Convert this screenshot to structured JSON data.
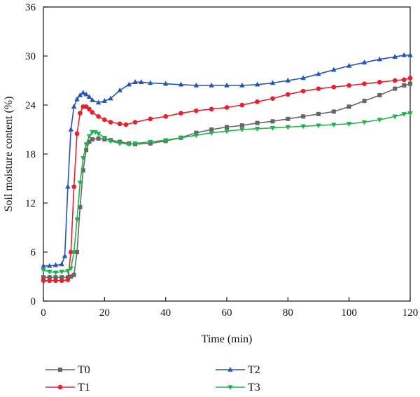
{
  "chart_data": {
    "type": "line",
    "title": "",
    "xlabel": "Time (min)",
    "ylabel": "Soil moisture content (%)",
    "xlim": [
      0,
      120
    ],
    "ylim": [
      0,
      36
    ],
    "xticks": [
      0,
      20,
      40,
      60,
      80,
      100,
      120
    ],
    "yticks": [
      0,
      6,
      12,
      18,
      24,
      30,
      36
    ],
    "grid": false,
    "legend_position": "bottom",
    "series": [
      {
        "name": "T0",
        "color": "#666666",
        "marker": "square",
        "x": [
          0,
          2,
          4,
          6,
          8,
          9,
          10,
          11,
          12,
          13,
          14,
          15,
          16,
          18,
          20,
          22,
          25,
          28,
          30,
          35,
          40,
          45,
          50,
          55,
          60,
          65,
          70,
          75,
          80,
          85,
          90,
          95,
          100,
          105,
          110,
          115,
          118,
          120
        ],
        "y": [
          2.9,
          2.9,
          2.9,
          2.9,
          2.9,
          3.0,
          3.2,
          6.0,
          11.5,
          16.0,
          18.5,
          19.5,
          19.8,
          19.9,
          19.8,
          19.7,
          19.5,
          19.3,
          19.2,
          19.3,
          19.6,
          20.0,
          20.6,
          21.0,
          21.3,
          21.5,
          21.8,
          22.0,
          22.3,
          22.6,
          22.9,
          23.2,
          23.8,
          24.5,
          25.2,
          26.0,
          26.4,
          26.6
        ]
      },
      {
        "name": "T1",
        "color": "#e8212e",
        "marker": "circle",
        "x": [
          0,
          2,
          4,
          6,
          8,
          9,
          10,
          11,
          12,
          13,
          14,
          15,
          16,
          18,
          20,
          22,
          25,
          27,
          30,
          35,
          40,
          45,
          50,
          55,
          60,
          65,
          70,
          75,
          80,
          85,
          90,
          95,
          100,
          105,
          110,
          115,
          118,
          120
        ],
        "y": [
          2.5,
          2.5,
          2.5,
          2.5,
          2.6,
          6.0,
          14.0,
          20.5,
          23.0,
          23.8,
          23.8,
          23.5,
          23.1,
          22.6,
          22.2,
          21.9,
          21.7,
          21.6,
          21.9,
          22.3,
          22.6,
          23.0,
          23.3,
          23.5,
          23.7,
          24.0,
          24.4,
          24.8,
          25.3,
          25.7,
          26.0,
          26.2,
          26.4,
          26.6,
          26.8,
          27.0,
          27.1,
          27.3
        ]
      },
      {
        "name": "T2",
        "color": "#2554b8",
        "marker": "triangle-up",
        "x": [
          0,
          2,
          4,
          6,
          7,
          8,
          9,
          10,
          11,
          12,
          13,
          14,
          15,
          16,
          18,
          20,
          22,
          25,
          28,
          30,
          32,
          35,
          40,
          45,
          50,
          55,
          60,
          65,
          70,
          75,
          80,
          85,
          90,
          95,
          100,
          105,
          110,
          115,
          118,
          120
        ],
        "y": [
          4.3,
          4.3,
          4.4,
          4.5,
          5.5,
          14.0,
          21.0,
          23.8,
          24.7,
          25.2,
          25.5,
          25.3,
          25.0,
          24.6,
          24.3,
          24.5,
          24.8,
          25.8,
          26.5,
          26.8,
          26.8,
          26.7,
          26.6,
          26.5,
          26.4,
          26.4,
          26.4,
          26.4,
          26.5,
          26.7,
          27.0,
          27.3,
          27.8,
          28.3,
          28.8,
          29.2,
          29.6,
          29.9,
          30.1,
          30.1
        ]
      },
      {
        "name": "T3",
        "color": "#22b24c",
        "marker": "triangle-down",
        "x": [
          0,
          2,
          4,
          6,
          8,
          9,
          10,
          11,
          12,
          13,
          14,
          15,
          16,
          17,
          18,
          20,
          22,
          25,
          28,
          30,
          35,
          40,
          45,
          50,
          55,
          60,
          65,
          70,
          75,
          80,
          85,
          90,
          95,
          100,
          105,
          110,
          115,
          118,
          120
        ],
        "y": [
          3.8,
          3.6,
          3.5,
          3.6,
          3.7,
          4.0,
          6.0,
          10.0,
          14.5,
          17.5,
          19.2,
          20.2,
          20.7,
          20.7,
          20.5,
          20.0,
          19.6,
          19.3,
          19.2,
          19.3,
          19.5,
          19.7,
          20.0,
          20.3,
          20.6,
          20.8,
          21.0,
          21.1,
          21.2,
          21.3,
          21.4,
          21.5,
          21.6,
          21.7,
          21.9,
          22.2,
          22.6,
          22.9,
          23.0
        ]
      }
    ]
  }
}
